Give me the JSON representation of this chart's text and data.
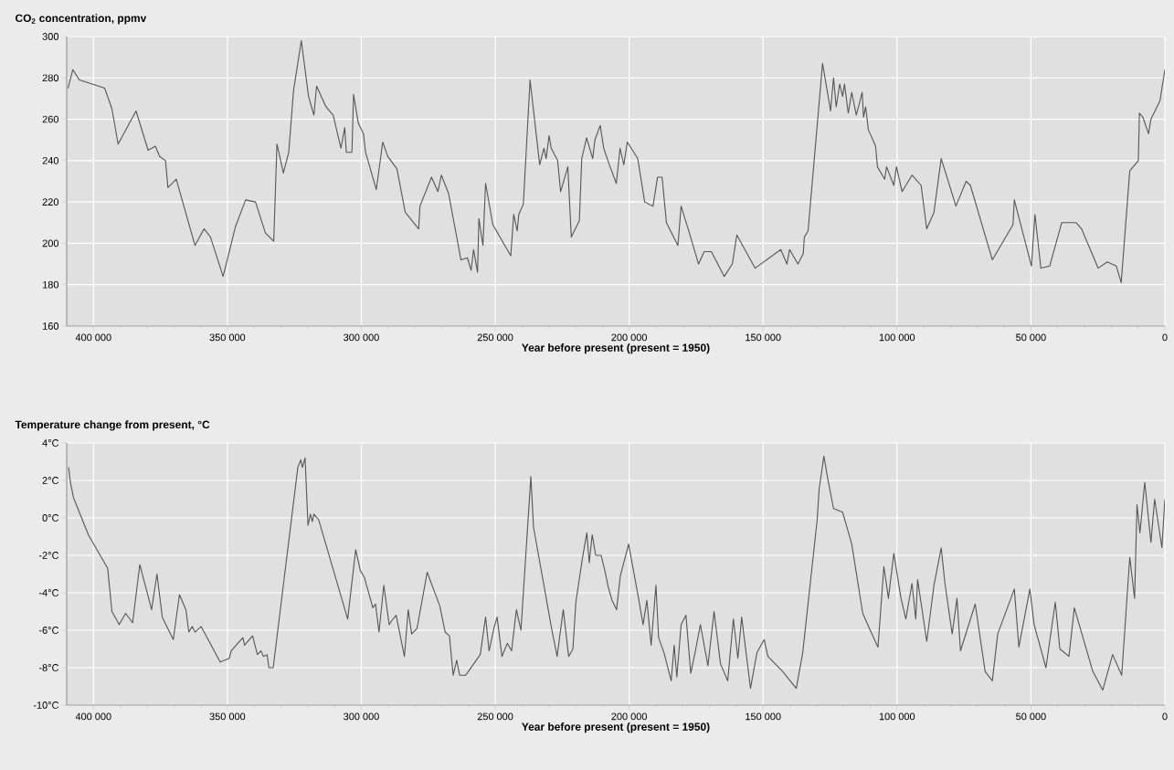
{
  "chart_data": [
    {
      "type": "line",
      "title": "CO$_{2}$ concentration, ppmv",
      "xlabel": "Year before present (present = 1950)",
      "x": [
        409500,
        407700,
        405300,
        400500,
        395800,
        393100,
        390800,
        384100,
        379600,
        376900,
        375300,
        373100,
        372200,
        369100,
        362100,
        358700,
        356300,
        351600,
        347000,
        343200,
        339500,
        335800,
        332700,
        331500,
        329100,
        327100,
        325300,
        322400,
        319700,
        317700,
        316700,
        313200,
        310500,
        307600,
        306200,
        305600,
        303500,
        302900,
        301100,
        299200,
        298400,
        294400,
        292000,
        290100,
        286700,
        283600,
        278600,
        278100,
        273800,
        271400,
        270100,
        267400,
        262800,
        260400,
        259000,
        258100,
        256600,
        256100,
        254600,
        253600,
        250900,
        244200,
        243100,
        241800,
        241200,
        239500,
        237000,
        233400,
        231800,
        231000,
        229900,
        229100,
        226700,
        225600,
        222900,
        221600,
        218600,
        217700,
        215900,
        213600,
        212800,
        210800,
        209500,
        207400,
        204800,
        203400,
        202000,
        200700,
        196800,
        194200,
        191100,
        189400,
        187700,
        186100,
        181800,
        180600,
        177500,
        174100,
        172000,
        169300,
        164500,
        161500,
        159800,
        153000,
        143400,
        141100,
        140100,
        137000,
        135000,
        134600,
        133200,
        127800,
        124800,
        123700,
        122700,
        121400,
        120300,
        119600,
        118200,
        116900,
        115200,
        113000,
        112500,
        111700,
        110700,
        108000,
        107300,
        104600,
        103900,
        101200,
        100200,
        98100,
        94400,
        91000,
        88900,
        86200,
        83500,
        78000,
        74200,
        72600,
        64400,
        56700,
        56200,
        49800,
        48500,
        46300,
        43000,
        38500,
        33100,
        31100,
        24900,
        21500,
        18100,
        16300,
        13100,
        9900,
        9500,
        8200,
        6100,
        5200,
        1800,
        0
      ],
      "series": [
        {
          "color": "#555555",
          "values": [
            275,
            284,
            279,
            277,
            275,
            265,
            248,
            264,
            245,
            247,
            242,
            240,
            227,
            231,
            199,
            207,
            203,
            184,
            208,
            221,
            220,
            205,
            201,
            248,
            234,
            244,
            274,
            298,
            271,
            262,
            276,
            266,
            262,
            246,
            256,
            244,
            244,
            272,
            258,
            253,
            244,
            226,
            249,
            242,
            236,
            215,
            207,
            218,
            232,
            225,
            233,
            224,
            192,
            193,
            187,
            197,
            186,
            212,
            199,
            229,
            209,
            194,
            214,
            206,
            214,
            219,
            279,
            238,
            246,
            241,
            252,
            246,
            240,
            225,
            237,
            203,
            211,
            241,
            251,
            241,
            250,
            257,
            246,
            238,
            229,
            246,
            238,
            249,
            241,
            220,
            218,
            232,
            232,
            210,
            199,
            218,
            205,
            190,
            196,
            196,
            184,
            190,
            204,
            188,
            197,
            190,
            197,
            190,
            195,
            203,
            206,
            287,
            264,
            280,
            266,
            277,
            271,
            277,
            263,
            273,
            262,
            273,
            261,
            266,
            255,
            247,
            237,
            231,
            237,
            228,
            237,
            225,
            233,
            228,
            207,
            215,
            241,
            218,
            230,
            228,
            192,
            209,
            221,
            189,
            214,
            188,
            189,
            210,
            210,
            207,
            188,
            191,
            189,
            181,
            235,
            240,
            263,
            261,
            253,
            260,
            269,
            284
          ]
        }
      ],
      "xlim": [
        410000,
        0
      ],
      "ylim": [
        160,
        300
      ],
      "xticks": [
        {
          "value": 400000,
          "label": "400 000"
        },
        {
          "value": 350000,
          "label": "350 000"
        },
        {
          "value": 300000,
          "label": "300 000"
        },
        {
          "value": 250000,
          "label": "250 000"
        },
        {
          "value": 200000,
          "label": "200 000"
        },
        {
          "value": 150000,
          "label": "150 000"
        },
        {
          "value": 100000,
          "label": "100 000"
        },
        {
          "value": 50000,
          "label": "50 000"
        },
        0
      ],
      "yticks": [
        160,
        180,
        200,
        220,
        240,
        260,
        280,
        300
      ],
      "grid": true,
      "marker": "none",
      "line_style": "solid"
    },
    {
      "type": "line",
      "title": "Temperature change from present, °C",
      "xlabel": "Year before present (present = 1950)",
      "x": [
        409300,
        408600,
        407500,
        401900,
        394700,
        393100,
        390400,
        388000,
        385400,
        382700,
        378300,
        376300,
        374300,
        370200,
        367900,
        365500,
        364400,
        363100,
        362100,
        359800,
        352700,
        349300,
        348600,
        344200,
        343600,
        340600,
        338800,
        337500,
        336500,
        335200,
        334500,
        332900,
        323700,
        322600,
        322000,
        321000,
        319900,
        319000,
        318300,
        317700,
        315900,
        305100,
        302100,
        300400,
        298800,
        295700,
        294700,
        293400,
        291600,
        289600,
        288700,
        287000,
        283900,
        282500,
        281200,
        279200,
        275400,
        270700,
        268700,
        267100,
        265700,
        264400,
        263300,
        261000,
        255600,
        253600,
        252300,
        250500,
        249300,
        247500,
        245500,
        243900,
        242100,
        240400,
        236700,
        235700,
        228700,
        226900,
        224600,
        222600,
        221000,
        219900,
        217500,
        215800,
        214900,
        213800,
        212500,
        210500,
        209100,
        207800,
        206400,
        204700,
        203300,
        200200,
        196500,
        194800,
        193400,
        191800,
        190000,
        189000,
        187000,
        184300,
        183200,
        182200,
        180600,
        178800,
        177000,
        175400,
        173400,
        170600,
        168300,
        165900,
        163200,
        161100,
        159400,
        158000,
        154700,
        152300,
        149600,
        148200,
        142700,
        137600,
        135200,
        129800,
        129100,
        127300,
        126000,
        123700,
        120300,
        116900,
        112800,
        110000,
        107100,
        104900,
        103200,
        101200,
        98500,
        96700,
        94400,
        93000,
        92300,
        88900,
        86200,
        83500,
        82100,
        79400,
        77600,
        76300,
        70800,
        67100,
        64400,
        62400,
        56200,
        54500,
        50400,
        48800,
        44400,
        40900,
        39200,
        35800,
        33800,
        26900,
        23200,
        19500,
        16100,
        13100,
        11300,
        10400,
        9300,
        7500,
        5200,
        3800,
        1100,
        0
      ],
      "series": [
        {
          "color": "#555555",
          "values": [
            2.7,
            1.9,
            1.1,
            -0.9,
            -2.7,
            -5,
            -5.7,
            -5.1,
            -5.6,
            -2.5,
            -4.9,
            -3,
            -5.3,
            -6.5,
            -4.1,
            -4.9,
            -6.1,
            -5.8,
            -6.1,
            -5.8,
            -7.7,
            -7.5,
            -7.1,
            -6.4,
            -6.8,
            -6.3,
            -7.3,
            -7.1,
            -7.4,
            -7.3,
            -8,
            -8,
            2.7,
            3.1,
            2.7,
            3.2,
            -0.4,
            0.2,
            -0.2,
            0.2,
            -0.1,
            -5.4,
            -1.7,
            -2.8,
            -3.2,
            -4.8,
            -4.6,
            -6.1,
            -3.6,
            -5.7,
            -5.5,
            -5.2,
            -7.4,
            -4.9,
            -6.2,
            -5.9,
            -2.9,
            -4.7,
            -6.1,
            -6.3,
            -8.4,
            -7.6,
            -8.4,
            -8.4,
            -7.3,
            -5.3,
            -7.1,
            -5.9,
            -5.3,
            -7.4,
            -6.7,
            -7.1,
            -4.9,
            -6,
            2.2,
            -0.5,
            -6.1,
            -7.4,
            -4.9,
            -7.4,
            -7,
            -4.5,
            -2.2,
            -0.8,
            -2.4,
            -0.9,
            -2,
            -2,
            -2.8,
            -3.7,
            -4.4,
            -4.9,
            -3.1,
            -1.4,
            -4.3,
            -5.7,
            -4.4,
            -6.8,
            -3.6,
            -6.4,
            -7.2,
            -8.7,
            -6.8,
            -8.5,
            -5.7,
            -5.2,
            -8.3,
            -7.2,
            -5.7,
            -7.9,
            -5,
            -7.8,
            -8.7,
            -5.4,
            -7.5,
            -5.3,
            -9.1,
            -7.2,
            -6.5,
            -7.4,
            -8.2,
            -9.1,
            -7.2,
            -0.1,
            1.5,
            3.3,
            2.2,
            0.5,
            0.3,
            -1.4,
            -5.1,
            -6,
            -6.9,
            -2.6,
            -4.3,
            -1.9,
            -4.3,
            -5.4,
            -3.5,
            -5.4,
            -3.3,
            -6.6,
            -3.6,
            -1.6,
            -3.5,
            -6.2,
            -4.3,
            -7.1,
            -4.6,
            -8.2,
            -8.7,
            -6.2,
            -3.8,
            -6.9,
            -3.8,
            -5.7,
            -8,
            -4.5,
            -7,
            -7.4,
            -4.8,
            -8.2,
            -9.2,
            -7.3,
            -8.4,
            -2.1,
            -4.3,
            0.7,
            -0.8,
            1.9,
            -1.3,
            1,
            -1.6,
            1
          ]
        }
      ],
      "xlim": [
        410000,
        0
      ],
      "ylim": [
        -10,
        4
      ],
      "xticks": [
        {
          "value": 400000,
          "label": "400 000"
        },
        {
          "value": 350000,
          "label": "350 000"
        },
        {
          "value": 300000,
          "label": "300 000"
        },
        {
          "value": 250000,
          "label": "250 000"
        },
        {
          "value": 200000,
          "label": "200 000"
        },
        {
          "value": 150000,
          "label": "150 000"
        },
        {
          "value": 100000,
          "label": "100 000"
        },
        {
          "value": 50000,
          "label": "50 000"
        },
        0
      ],
      "yticks": [
        {
          "value": 4,
          "label": "4°C"
        },
        {
          "value": 2,
          "label": "2°C"
        },
        {
          "value": 0,
          "label": "0°C"
        },
        {
          "value": -2,
          "label": "-2°C"
        },
        {
          "value": -4,
          "label": "-4°C"
        },
        {
          "value": -6,
          "label": "-6°C"
        },
        {
          "value": -8,
          "label": "-8°C"
        },
        {
          "value": -10,
          "label": "-10°C"
        }
      ],
      "grid": true,
      "marker": "none",
      "line_style": "solid"
    }
  ]
}
